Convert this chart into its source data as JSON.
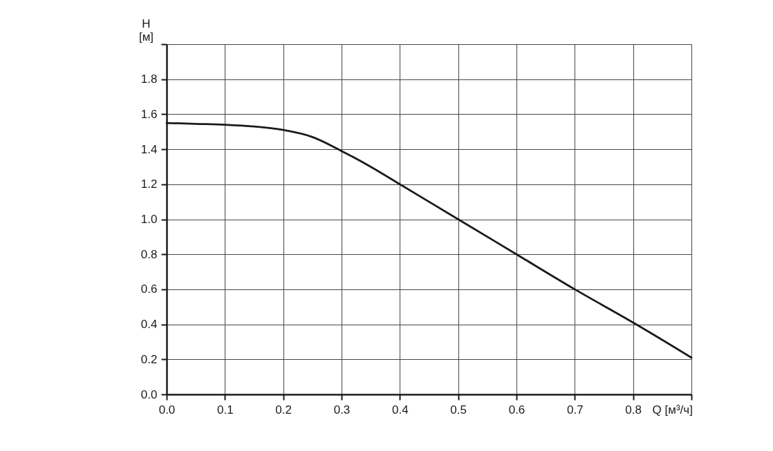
{
  "chart_data": {
    "type": "line",
    "xlabel": "Q [м³/ч]",
    "ylabel": "H\n[м]",
    "x": [
      0,
      0.05,
      0.1,
      0.15,
      0.2,
      0.25,
      0.3,
      0.35,
      0.4,
      0.5,
      0.6,
      0.7,
      0.8,
      0.9
    ],
    "series": [
      {
        "color": "#1a1a1a",
        "values": [
          1.55,
          1.545,
          1.54,
          1.53,
          1.51,
          1.47,
          1.39,
          1.3,
          1.2,
          1.0,
          0.8,
          0.6,
          0.41,
          0.21
        ]
      }
    ],
    "xlim": [
      0,
      0.9
    ],
    "xticks": [
      "0.0",
      0.1,
      0.2,
      0.3,
      0.4,
      0.5,
      0.6,
      0.7,
      0.8,
      {
        "value": 0.9,
        "label": null
      }
    ],
    "ylim": [
      0,
      2.0
    ],
    "yticks": [
      {
        "value": 0,
        "label": "0.0"
      },
      0.2,
      0.4,
      0.6,
      0.8,
      {
        "value": 1.0,
        "label": "1.0"
      },
      1.2,
      1.4,
      1.6,
      1.8,
      {
        "value": 2.0,
        "label": null
      }
    ],
    "grid": true,
    "marker": "none",
    "line_style": "solid"
  }
}
